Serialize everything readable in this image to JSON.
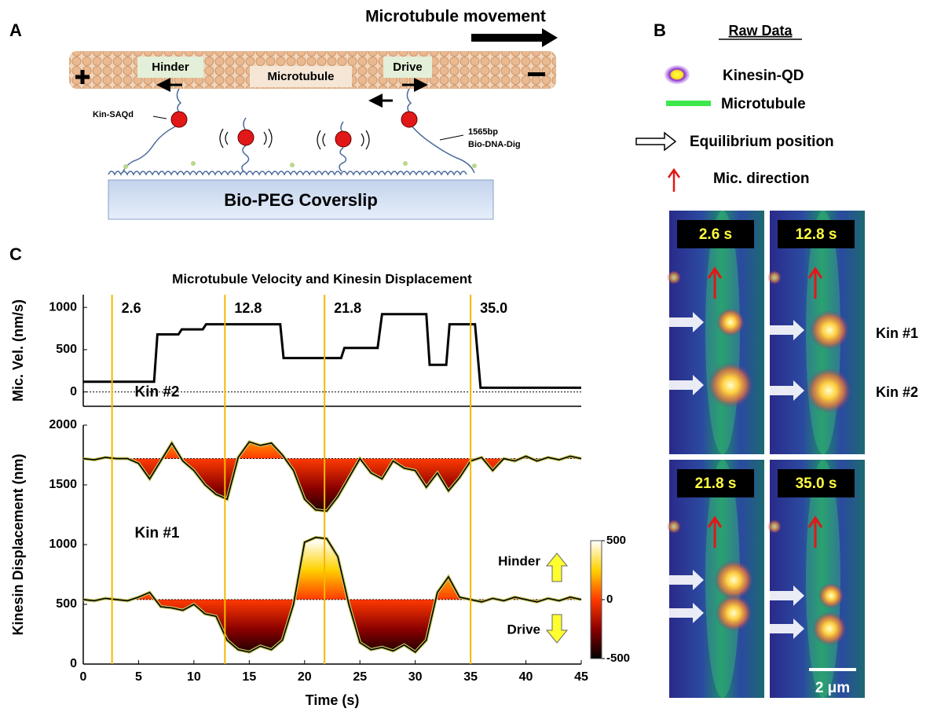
{
  "panel_a": {
    "label": "A",
    "movement": "Microtubule movement",
    "hinder": "Hinder",
    "microtubule": "Microtubule",
    "drive": "Drive",
    "kin_saqd": "Kin-SAQd",
    "dna_length": "1565bp",
    "dna_name": "Bio-DNA-Dig",
    "coverslip": "Bio-PEG Coverslip"
  },
  "panel_b": {
    "label": "B",
    "legend_title": "Raw Data",
    "legend": [
      "Kinesin-QD",
      "Microtubule",
      "Equilibrium position",
      "Mic. direction"
    ],
    "frames": [
      "2.6 s",
      "12.8 s",
      "21.8 s",
      "35.0 s"
    ],
    "kinesins": [
      "Kin #1",
      "Kin #2"
    ],
    "scale_bar": "2 μm"
  },
  "panel_c": {
    "label": "C"
  },
  "chart_data": [
    {
      "type": "line",
      "title": "Microtubule Velocity and Kinesin Displacement",
      "y_label": "Mic. Vel. (nm/s)",
      "x": [
        0,
        6.4,
        6.7,
        8.6,
        8.9,
        10.8,
        11.1,
        17.8,
        18.1,
        23.3,
        23.6,
        26.6,
        27.0,
        31.0,
        31.3,
        32.8,
        33.1,
        35.4,
        35.9,
        45
      ],
      "values": [
        120,
        120,
        680,
        680,
        740,
        740,
        800,
        800,
        400,
        400,
        520,
        520,
        920,
        920,
        320,
        320,
        800,
        800,
        50,
        50
      ],
      "color": "#000000",
      "baseline": 0,
      "xlim": [
        0,
        45
      ],
      "ylim": [
        -170,
        1150
      ],
      "yticks": [
        0,
        500,
        1000
      ],
      "markers": [
        2.6,
        12.8,
        21.8,
        {
          "value": 35,
          "label": "35.0"
        }
      ],
      "marker_color": "#f5b800"
    },
    {
      "type": "area",
      "y_label": "Kinesin Displacement (nm)",
      "x_label": "Time (s)",
      "x": [
        0,
        1,
        2,
        3,
        4,
        5,
        6,
        7,
        8,
        9,
        10,
        11,
        12,
        13,
        14,
        15,
        16,
        17,
        18,
        19,
        20,
        21,
        22,
        23,
        24,
        25,
        26,
        27,
        28,
        29,
        30,
        31,
        32,
        33,
        34,
        35,
        36,
        37,
        38,
        39,
        40,
        41,
        42,
        43,
        44,
        45
      ],
      "series": [
        {
          "name": "Kin #2",
          "baseline": 1720,
          "values": [
            1720,
            1710,
            1730,
            1720,
            1720,
            1680,
            1550,
            1700,
            1850,
            1700,
            1620,
            1500,
            1420,
            1380,
            1730,
            1860,
            1830,
            1850,
            1750,
            1620,
            1380,
            1290,
            1280,
            1400,
            1560,
            1720,
            1600,
            1550,
            1700,
            1640,
            1620,
            1480,
            1600,
            1450,
            1560,
            1700,
            1730,
            1620,
            1720,
            1700,
            1740,
            1700,
            1730,
            1710,
            1740,
            1720
          ]
        },
        {
          "name": "Kin #1",
          "baseline": 540,
          "values": [
            540,
            530,
            550,
            540,
            530,
            560,
            600,
            480,
            470,
            450,
            500,
            420,
            400,
            200,
            120,
            100,
            150,
            120,
            200,
            500,
            1020,
            1060,
            1050,
            900,
            500,
            180,
            120,
            140,
            110,
            160,
            100,
            200,
            600,
            730,
            560,
            540,
            520,
            550,
            530,
            560,
            540,
            520,
            550,
            530,
            560,
            540
          ]
        }
      ],
      "line_color": "#000000",
      "xlim": [
        0,
        45
      ],
      "xticks": [
        0,
        5,
        10,
        15,
        20,
        25,
        30,
        35,
        40,
        45
      ],
      "ylim": [
        0,
        2000
      ],
      "yticks": [
        0,
        500,
        1000,
        1500,
        2000
      ],
      "clim": [
        -500,
        500
      ],
      "cticks": [
        -500,
        0,
        500
      ],
      "annotations": [
        "Hinder",
        "Drive"
      ]
    }
  ]
}
